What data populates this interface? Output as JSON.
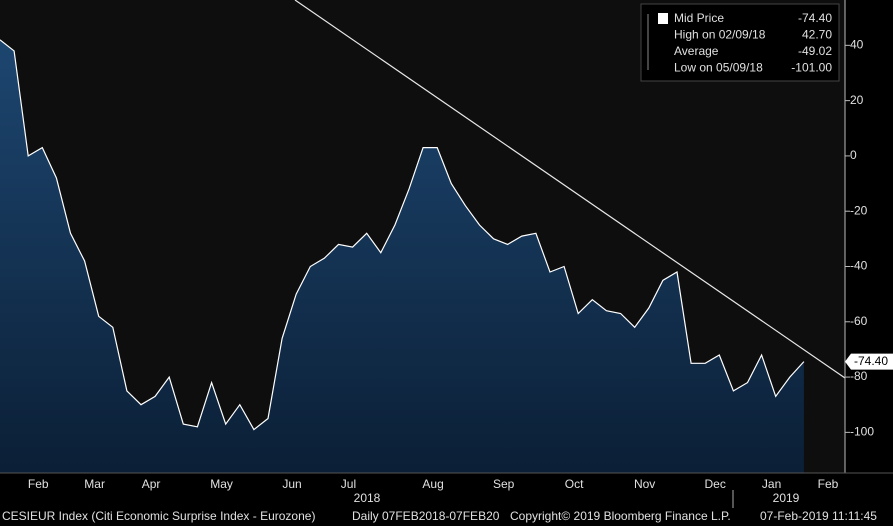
{
  "chart_data": {
    "type": "area",
    "categories": [
      null,
      null,
      "Feb",
      null,
      null,
      null,
      "Mar",
      null,
      null,
      null,
      "Apr",
      null,
      null,
      null,
      null,
      "May",
      null,
      null,
      null,
      null,
      "Jun",
      null,
      null,
      null,
      "Jul",
      null,
      null,
      null,
      null,
      null,
      "Aug",
      null,
      null,
      null,
      null,
      "Sep",
      null,
      null,
      null,
      null,
      "Oct",
      null,
      null,
      null,
      null,
      "Nov",
      null,
      null,
      null,
      null,
      "Dec",
      null,
      null,
      null,
      "Jan",
      null,
      null,
      null,
      "Feb"
    ],
    "series": [
      {
        "name": "Mid Price",
        "color": "#ffffff",
        "fill": "#14314f",
        "values": [
          42,
          38,
          0,
          3,
          -8,
          -28,
          -38,
          -58,
          -62,
          -85,
          -90,
          -87,
          -80,
          -97,
          -98,
          -82,
          -97,
          -90,
          -99,
          -95,
          -66,
          -50,
          -40,
          -37,
          -32,
          -33,
          -28,
          -35,
          -25,
          -12,
          3,
          3,
          -10,
          -18,
          -25,
          -30,
          -32,
          -29,
          -28,
          -42,
          -40,
          -57,
          -52,
          -56,
          -57,
          -62,
          -55,
          -45,
          -42,
          -75,
          -75,
          -72,
          -85,
          -82,
          -72,
          -87,
          -80,
          -74.4,
          null
        ]
      }
    ],
    "years": [
      "2018",
      "2019"
    ],
    "ylim": [
      -114.7,
      56.4
    ],
    "yticks": [
      40,
      20,
      0,
      -20,
      -40,
      -60,
      -80,
      -100
    ],
    "last_label": {
      "value": -74.4,
      "label": "-74.40"
    },
    "legend": [
      {
        "name": "Mid Price",
        "label": "-74.40"
      },
      {
        "name": "High on 02/09/18",
        "label": "42.70"
      },
      {
        "name": "Average",
        "label": "-49.02"
      },
      {
        "name": "Low on 05/09/18",
        "label": "-101.00"
      }
    ],
    "footer": [
      "CESIEUR Index (Citi Economic Surprise Index - Eurozone)",
      "Daily 07FEB2018-07FEB20",
      "Copyright© 2019 Bloomberg Finance L.P.",
      "07-Feb-2019 11:11:45"
    ]
  }
}
